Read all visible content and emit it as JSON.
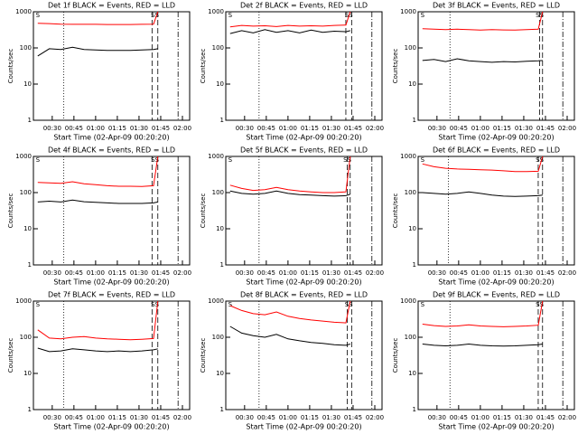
{
  "chart_data": [
    {
      "type": "line",
      "title": "Det 1f BLACK = Events, RED = LLD",
      "xlabel": "Start Time (02-Apr-09 00:20:20)",
      "ylabel": "Counts/sec",
      "log_y": true,
      "x": [
        20,
        28,
        36,
        44,
        52,
        60,
        68,
        76,
        84,
        92,
        100,
        103
      ],
      "series": [
        {
          "color": "#ff0000",
          "values": [
            480,
            470,
            455,
            450,
            450,
            448,
            445,
            445,
            445,
            450,
            455,
            1000
          ]
        },
        {
          "color": "#000000",
          "values": [
            60,
            95,
            90,
            105,
            90,
            88,
            85,
            85,
            85,
            88,
            90,
            95
          ]
        }
      ],
      "vlines": [
        {
          "x": 38,
          "style": "dotted"
        },
        {
          "x": 99,
          "style": "dashed"
        },
        {
          "x": 103,
          "style": "dashed"
        },
        {
          "x": 117,
          "style": "dashdot"
        }
      ],
      "annotations": [
        {
          "text": "S",
          "x": 20
        },
        {
          "text": "SS",
          "x": 101
        }
      ],
      "xlim": [
        17,
        125
      ],
      "ylim": [
        1,
        1000
      ],
      "yticks": [
        1,
        10,
        100,
        1000
      ],
      "xticks": [
        {
          "value": 30,
          "label": "00:30"
        },
        {
          "value": 45,
          "label": "00:45"
        },
        {
          "value": 60,
          "label": "01:00"
        },
        {
          "value": 75,
          "label": "01:15"
        },
        {
          "value": 90,
          "label": "01:30"
        },
        {
          "value": 105,
          "label": "01:45"
        },
        {
          "value": 120,
          "label": "02:00"
        }
      ]
    },
    {
      "type": "line",
      "title": "Det 2f BLACK = Events, RED = LLD",
      "xlabel": "Start Time (02-Apr-09 00:20:20)",
      "ylabel": "Counts/sec",
      "log_y": true,
      "x": [
        20,
        28,
        36,
        44,
        52,
        60,
        68,
        76,
        84,
        92,
        100,
        103
      ],
      "series": [
        {
          "color": "#ff0000",
          "values": [
            380,
            420,
            400,
            410,
            390,
            420,
            400,
            410,
            400,
            420,
            430,
            1000
          ]
        },
        {
          "color": "#000000",
          "values": [
            250,
            300,
            260,
            320,
            270,
            300,
            260,
            310,
            270,
            290,
            280,
            300
          ]
        }
      ],
      "vlines": [
        {
          "x": 40,
          "style": "dotted"
        },
        {
          "x": 100,
          "style": "dashed"
        },
        {
          "x": 104,
          "style": "dashed"
        },
        {
          "x": 118,
          "style": "dashdot"
        }
      ],
      "annotations": [
        {
          "text": "S",
          "x": 20
        },
        {
          "text": "SS",
          "x": 102
        }
      ],
      "xlim": [
        17,
        125
      ],
      "ylim": [
        1,
        1000
      ],
      "yticks": [
        1,
        10,
        100,
        1000
      ],
      "xticks": [
        {
          "value": 30,
          "label": "00:30"
        },
        {
          "value": 45,
          "label": "00:45"
        },
        {
          "value": 60,
          "label": "01:00"
        },
        {
          "value": 75,
          "label": "01:15"
        },
        {
          "value": 90,
          "label": "01:30"
        },
        {
          "value": 105,
          "label": "01:45"
        },
        {
          "value": 120,
          "label": "02:00"
        }
      ]
    },
    {
      "type": "line",
      "title": "Det 3f BLACK = Events, RED = LLD",
      "xlabel": "Start Time (02-Apr-09 00:20:20)",
      "ylabel": "Counts/sec",
      "log_y": true,
      "x": [
        20,
        28,
        36,
        44,
        52,
        60,
        68,
        76,
        84,
        92,
        100,
        103
      ],
      "series": [
        {
          "color": "#ff0000",
          "values": [
            340,
            330,
            320,
            330,
            320,
            310,
            320,
            315,
            310,
            320,
            330,
            1000
          ]
        },
        {
          "color": "#000000",
          "values": [
            45,
            48,
            42,
            50,
            44,
            42,
            40,
            42,
            41,
            43,
            44,
            45
          ]
        }
      ],
      "vlines": [
        {
          "x": 39,
          "style": "dotted"
        },
        {
          "x": 101,
          "style": "dashed"
        },
        {
          "x": 103,
          "style": "dashed"
        },
        {
          "x": 117,
          "style": "dashdot"
        }
      ],
      "annotations": [
        {
          "text": "S",
          "x": 20
        },
        {
          "text": "SS",
          "x": 101
        }
      ],
      "xlim": [
        17,
        125
      ],
      "ylim": [
        1,
        1000
      ],
      "yticks": [
        1,
        10,
        100,
        1000
      ],
      "xticks": [
        {
          "value": 30,
          "label": "00:30"
        },
        {
          "value": 45,
          "label": "00:45"
        },
        {
          "value": 60,
          "label": "01:00"
        },
        {
          "value": 75,
          "label": "01:15"
        },
        {
          "value": 90,
          "label": "01:30"
        },
        {
          "value": 105,
          "label": "01:45"
        },
        {
          "value": 120,
          "label": "02:00"
        }
      ]
    },
    {
      "type": "line",
      "title": "Det 4f BLACK = Events, RED = LLD",
      "xlabel": "Start Time (02-Apr-09 00:20:20)",
      "ylabel": "Counts/sec",
      "log_y": true,
      "x": [
        20,
        28,
        36,
        44,
        52,
        60,
        68,
        76,
        84,
        92,
        100,
        103
      ],
      "series": [
        {
          "color": "#ff0000",
          "values": [
            190,
            185,
            180,
            200,
            175,
            165,
            155,
            150,
            150,
            148,
            155,
            1000
          ]
        },
        {
          "color": "#000000",
          "values": [
            55,
            58,
            55,
            62,
            56,
            54,
            52,
            50,
            50,
            50,
            52,
            55
          ]
        }
      ],
      "vlines": [
        {
          "x": 38,
          "style": "dotted"
        },
        {
          "x": 99,
          "style": "dashed"
        },
        {
          "x": 103,
          "style": "dashed"
        },
        {
          "x": 117,
          "style": "dashdot"
        }
      ],
      "annotations": [
        {
          "text": "S",
          "x": 20
        },
        {
          "text": "SS",
          "x": 101
        }
      ],
      "xlim": [
        17,
        125
      ],
      "ylim": [
        1,
        1000
      ],
      "yticks": [
        1,
        10,
        100,
        1000
      ],
      "xticks": [
        {
          "value": 30,
          "label": "00:30"
        },
        {
          "value": 45,
          "label": "00:45"
        },
        {
          "value": 60,
          "label": "01:00"
        },
        {
          "value": 75,
          "label": "01:15"
        },
        {
          "value": 90,
          "label": "01:30"
        },
        {
          "value": 105,
          "label": "01:45"
        },
        {
          "value": 120,
          "label": "02:00"
        }
      ]
    },
    {
      "type": "line",
      "title": "Det 5f BLACK = Events, RED = LLD",
      "xlabel": "Start Time (02-Apr-09 00:20:20)",
      "ylabel": "Counts/sec",
      "log_y": true,
      "x": [
        20,
        28,
        36,
        44,
        52,
        60,
        68,
        76,
        84,
        92,
        100,
        103
      ],
      "series": [
        {
          "color": "#ff0000",
          "values": [
            160,
            130,
            115,
            120,
            140,
            120,
            110,
            105,
            100,
            100,
            105,
            1000
          ]
        },
        {
          "color": "#000000",
          "values": [
            110,
            95,
            90,
            95,
            110,
            95,
            88,
            85,
            82,
            80,
            82,
            90
          ]
        }
      ],
      "vlines": [
        {
          "x": 40,
          "style": "dotted"
        },
        {
          "x": 101,
          "style": "dashed"
        },
        {
          "x": 103,
          "style": "dashed"
        },
        {
          "x": 118,
          "style": "dashdot"
        }
      ],
      "annotations": [
        {
          "text": "S",
          "x": 20
        },
        {
          "text": "SS",
          "x": 101
        }
      ],
      "xlim": [
        17,
        125
      ],
      "ylim": [
        1,
        1000
      ],
      "yticks": [
        1,
        10,
        100,
        1000
      ],
      "xticks": [
        {
          "value": 30,
          "label": "00:30"
        },
        {
          "value": 45,
          "label": "00:45"
        },
        {
          "value": 60,
          "label": "01:00"
        },
        {
          "value": 75,
          "label": "01:15"
        },
        {
          "value": 90,
          "label": "01:30"
        },
        {
          "value": 105,
          "label": "01:45"
        },
        {
          "value": 120,
          "label": "02:00"
        }
      ]
    },
    {
      "type": "line",
      "title": "Det 6f BLACK = Events, RED = LLD",
      "xlabel": "Start Time (02-Apr-09 00:20:20)",
      "ylabel": "Counts/sec",
      "log_y": true,
      "x": [
        20,
        28,
        36,
        44,
        52,
        60,
        68,
        76,
        84,
        92,
        100,
        103
      ],
      "series": [
        {
          "color": "#ff0000",
          "values": [
            620,
            520,
            470,
            450,
            440,
            430,
            420,
            400,
            380,
            380,
            390,
            1000
          ]
        },
        {
          "color": "#000000",
          "values": [
            100,
            95,
            90,
            95,
            105,
            95,
            85,
            80,
            78,
            80,
            82,
            85
          ]
        }
      ],
      "vlines": [
        {
          "x": 38,
          "style": "dotted"
        },
        {
          "x": 100,
          "style": "dashed"
        },
        {
          "x": 103,
          "style": "dashed"
        },
        {
          "x": 117,
          "style": "dashdot"
        }
      ],
      "annotations": [
        {
          "text": "S",
          "x": 20
        },
        {
          "text": "SS",
          "x": 101
        }
      ],
      "xlim": [
        17,
        125
      ],
      "ylim": [
        1,
        1000
      ],
      "yticks": [
        1,
        10,
        100,
        1000
      ],
      "xticks": [
        {
          "value": 30,
          "label": "00:30"
        },
        {
          "value": 45,
          "label": "00:45"
        },
        {
          "value": 60,
          "label": "01:00"
        },
        {
          "value": 75,
          "label": "01:15"
        },
        {
          "value": 90,
          "label": "01:30"
        },
        {
          "value": 105,
          "label": "01:45"
        },
        {
          "value": 120,
          "label": "02:00"
        }
      ]
    },
    {
      "type": "line",
      "title": "Det 7f BLACK = Events, RED = LLD",
      "xlabel": "Start Time (02-Apr-09 00:20:20)",
      "ylabel": "Counts/sec",
      "log_y": true,
      "x": [
        20,
        28,
        36,
        44,
        52,
        60,
        68,
        76,
        84,
        92,
        100,
        103
      ],
      "series": [
        {
          "color": "#ff0000",
          "values": [
            160,
            95,
            90,
            100,
            105,
            95,
            90,
            88,
            85,
            88,
            92,
            1000
          ]
        },
        {
          "color": "#000000",
          "values": [
            50,
            40,
            42,
            48,
            45,
            42,
            40,
            42,
            40,
            42,
            45,
            48
          ]
        }
      ],
      "vlines": [
        {
          "x": 38,
          "style": "dotted"
        },
        {
          "x": 99,
          "style": "dashed"
        },
        {
          "x": 103,
          "style": "dashed"
        },
        {
          "x": 117,
          "style": "dashdot"
        }
      ],
      "annotations": [
        {
          "text": "S",
          "x": 20
        },
        {
          "text": "SS",
          "x": 101
        }
      ],
      "xlim": [
        17,
        125
      ],
      "ylim": [
        1,
        1000
      ],
      "yticks": [
        1,
        10,
        100,
        1000
      ],
      "xticks": [
        {
          "value": 30,
          "label": "00:30"
        },
        {
          "value": 45,
          "label": "00:45"
        },
        {
          "value": 60,
          "label": "01:00"
        },
        {
          "value": 75,
          "label": "01:15"
        },
        {
          "value": 90,
          "label": "01:30"
        },
        {
          "value": 105,
          "label": "01:45"
        },
        {
          "value": 120,
          "label": "02:00"
        }
      ]
    },
    {
      "type": "line",
      "title": "Det 8f BLACK = Events, RED = LLD",
      "xlabel": "Start Time (02-Apr-09 00:20:20)",
      "ylabel": "Counts/sec",
      "log_y": true,
      "x": [
        20,
        28,
        36,
        44,
        52,
        60,
        68,
        76,
        84,
        92,
        100,
        103
      ],
      "series": [
        {
          "color": "#ff0000",
          "values": [
            750,
            550,
            450,
            420,
            500,
            380,
            330,
            300,
            280,
            260,
            250,
            1000
          ]
        },
        {
          "color": "#000000",
          "values": [
            200,
            130,
            110,
            100,
            120,
            90,
            80,
            72,
            68,
            62,
            60,
            65
          ]
        }
      ],
      "vlines": [
        {
          "x": 40,
          "style": "dotted"
        },
        {
          "x": 101,
          "style": "dashed"
        },
        {
          "x": 104,
          "style": "dashed"
        },
        {
          "x": 118,
          "style": "dashdot"
        }
      ],
      "annotations": [
        {
          "text": "S",
          "x": 20
        },
        {
          "text": "SS",
          "x": 102
        }
      ],
      "xlim": [
        17,
        125
      ],
      "ylim": [
        1,
        1000
      ],
      "yticks": [
        1,
        10,
        100,
        1000
      ],
      "xticks": [
        {
          "value": 30,
          "label": "00:30"
        },
        {
          "value": 45,
          "label": "00:45"
        },
        {
          "value": 60,
          "label": "01:00"
        },
        {
          "value": 75,
          "label": "01:15"
        },
        {
          "value": 90,
          "label": "01:30"
        },
        {
          "value": 105,
          "label": "01:45"
        },
        {
          "value": 120,
          "label": "02:00"
        }
      ]
    },
    {
      "type": "line",
      "title": "Det 9f BLACK = Events, RED = LLD",
      "xlabel": "Start Time (02-Apr-09 00:20:20)",
      "ylabel": "Counts/sec",
      "log_y": true,
      "x": [
        20,
        28,
        36,
        44,
        52,
        60,
        68,
        76,
        84,
        92,
        100,
        103
      ],
      "series": [
        {
          "color": "#ff0000",
          "values": [
            230,
            210,
            200,
            205,
            220,
            205,
            200,
            195,
            200,
            205,
            215,
            1000
          ]
        },
        {
          "color": "#000000",
          "values": [
            65,
            60,
            58,
            60,
            65,
            60,
            58,
            57,
            58,
            60,
            62,
            65
          ]
        }
      ],
      "vlines": [
        {
          "x": 39,
          "style": "dotted"
        },
        {
          "x": 100,
          "style": "dashed"
        },
        {
          "x": 103,
          "style": "dashed"
        },
        {
          "x": 117,
          "style": "dashdot"
        }
      ],
      "annotations": [
        {
          "text": "S",
          "x": 20
        },
        {
          "text": "SS",
          "x": 101
        }
      ],
      "xlim": [
        17,
        125
      ],
      "ylim": [
        1,
        1000
      ],
      "yticks": [
        1,
        10,
        100,
        1000
      ],
      "xticks": [
        {
          "value": 30,
          "label": "00:30"
        },
        {
          "value": 45,
          "label": "00:45"
        },
        {
          "value": 60,
          "label": "01:00"
        },
        {
          "value": 75,
          "label": "01:15"
        },
        {
          "value": 90,
          "label": "01:30"
        },
        {
          "value": 105,
          "label": "01:45"
        },
        {
          "value": 120,
          "label": "02:00"
        }
      ]
    }
  ]
}
